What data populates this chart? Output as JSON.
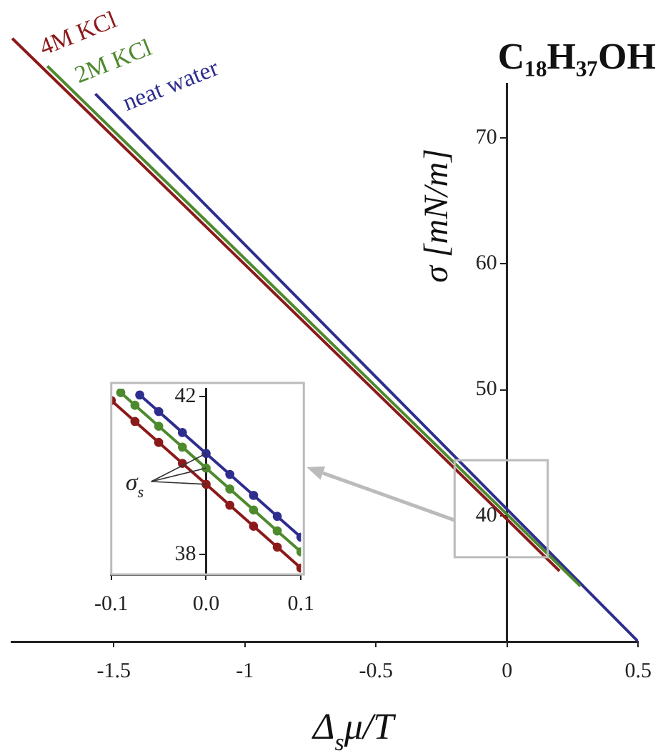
{
  "chart_data": [
    {
      "type": "line",
      "title": "C₁₈H₃₇OH",
      "xlabel": "Δ$_{s}$μ/T",
      "ylabel": "σ [mN/m]",
      "xlim": [
        -1.89,
        0.5
      ],
      "ylim": [
        30,
        78
      ],
      "xticks": [
        -1.5,
        -1,
        -0.5,
        0,
        0.5
      ],
      "yticks": [
        {
          "value": 30,
          "label": null
        },
        40,
        50,
        60,
        70
      ],
      "grid": false,
      "legend": false,
      "marker": "none",
      "series": [
        {
          "name": "4M KCl",
          "color": "#8b1a1a",
          "x": [
            -1.887,
            0,
            0.2
          ],
          "values": [
            77.9,
            39.7,
            35.6
          ]
        },
        {
          "name": "2M KCl",
          "color": "#4e8a2e",
          "x": [
            -1.753,
            0,
            0.28
          ],
          "values": [
            75.7,
            40.1,
            34.4
          ]
        },
        {
          "name": "neat water",
          "color": "#2e2e8f",
          "x": [
            -1.57,
            0,
            0.5
          ],
          "values": [
            73.5,
            40.5,
            30
          ]
        }
      ]
    },
    {
      "type": "line",
      "xlim": [
        -0.1,
        0.1
      ],
      "ylim": [
        37.5,
        42.2
      ],
      "xticks": [
        -0.1,
        {
          "value": 0,
          "label": "0.0"
        },
        0.1
      ],
      "yticks": [
        38,
        42
      ],
      "grid": false,
      "legend": false,
      "marker": "circle",
      "annotations": [
        "σ$_{s}$"
      ],
      "series": [
        {
          "color": "#8b1a1a",
          "x": [
            -0.1,
            -0.075,
            -0.05,
            -0.025,
            0,
            0.025,
            0.05,
            0.075,
            0.1
          ],
          "values": [
            41.9,
            41.37,
            40.84,
            40.31,
            39.78,
            39.25,
            38.72,
            38.19,
            37.66
          ]
        },
        {
          "color": "#4e8a2e",
          "x": [
            -0.09,
            -0.075,
            -0.05,
            -0.025,
            0,
            0.025,
            0.05,
            0.075,
            0.1
          ],
          "values": [
            42.1,
            41.78,
            41.25,
            40.72,
            40.19,
            39.66,
            39.13,
            38.6,
            38.07
          ]
        },
        {
          "color": "#2e2e8f",
          "x": [
            -0.07,
            -0.05,
            -0.025,
            0,
            0.025,
            0.05,
            0.075,
            0.1
          ],
          "values": [
            42.04,
            41.62,
            41.09,
            40.56,
            40.03,
            39.5,
            38.97,
            38.44
          ]
        }
      ]
    }
  ]
}
